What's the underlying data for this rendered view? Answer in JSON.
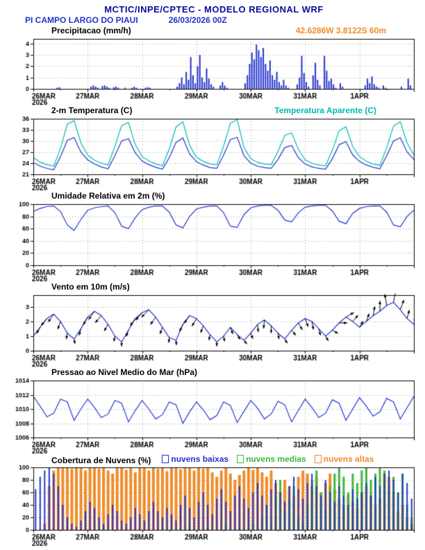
{
  "header": {
    "title": "MCTIC/INPE/CPTEC - MODELO REGIONAL WRF",
    "station": "PI CAMPO LARGO DO PIAUI",
    "run": "26/03/2026 00Z",
    "coords": "42.6286W 3.8122S 60m"
  },
  "colors": {
    "navy_title": "#0b0b99",
    "blue_series": "#2233cc",
    "cyan_series": "#00bbb0",
    "green_series": "#3cb83c",
    "orange_series": "#f08c28",
    "vector_black": "#000000"
  },
  "x_axis": {
    "ticks": [
      "26MAR",
      "27MAR",
      "28MAR",
      "29MAR",
      "30MAR",
      "31MAR",
      "1APR"
    ],
    "year": "2026",
    "total_hours": 168
  },
  "chart_data": [
    {
      "type": "bar",
      "title": "Precipitacao (mm/h)",
      "ylim": [
        0,
        4.4
      ],
      "yticks": [
        0,
        1,
        2,
        3,
        4
      ],
      "series": [
        {
          "name": "precipitacao",
          "kind": "bar",
          "color": "#2233cc",
          "step_hours": 1,
          "barw": 2,
          "values": [
            0,
            0,
            0,
            0,
            0,
            0,
            0,
            0,
            0,
            0,
            0.1,
            0.15,
            0,
            0,
            0,
            0,
            0,
            0,
            0,
            0,
            0,
            0,
            0,
            0,
            0,
            0.2,
            0.3,
            0.2,
            0.1,
            0,
            0.25,
            0.3,
            0.2,
            0.1,
            0,
            0.15,
            0.2,
            0.1,
            0,
            0,
            0.1,
            0,
            0,
            0.1,
            0.2,
            0.1,
            0,
            0,
            0,
            0.1,
            0.15,
            0.1,
            0,
            0,
            0,
            0,
            0,
            0,
            0,
            0,
            0,
            0,
            0,
            0.2,
            0.5,
            1,
            0.4,
            1.5,
            0.8,
            2.8,
            1.2,
            0.5,
            2,
            3,
            1,
            0.6,
            1.8,
            0.9,
            0.4,
            0.2,
            0,
            0,
            0.3,
            0.6,
            0.3,
            0.1,
            0,
            0,
            0,
            0,
            0,
            0,
            0,
            0.5,
            1.2,
            2.2,
            3.2,
            2.6,
            3.9,
            3.4,
            2.8,
            3.6,
            2.2,
            1.6,
            2.5,
            1.2,
            0.8,
            1.5,
            0.6,
            0.3,
            0.8,
            0.3,
            0.1,
            0,
            0,
            0,
            0.4,
            1,
            2.9,
            1.4,
            0.6,
            0.2,
            0,
            1.2,
            2.3,
            0.8,
            0.3,
            0,
            2.9,
            1.6,
            0.7,
            0.9,
            0.4,
            0.1,
            0,
            0.5,
            0.2,
            0,
            0,
            0,
            0,
            0,
            0,
            0,
            0,
            0,
            0.3,
            0.9,
            0.5,
            1.1,
            0.4,
            0.2,
            0.1,
            0,
            0.3,
            0.1,
            0,
            0,
            0,
            0,
            0,
            0,
            0.2,
            0,
            0,
            0.9,
            0.3,
            0
          ]
        }
      ]
    },
    {
      "type": "line",
      "title": "2-m Temperatura (C)",
      "right_label": "Temperatura Aparente (C)",
      "ylim": [
        21,
        36
      ],
      "yticks": [
        21,
        24,
        27,
        30,
        33,
        36
      ],
      "series": [
        {
          "name": "temperatura-2m",
          "kind": "line",
          "color": "#2233cc",
          "step_hours": 3,
          "values": [
            24.2,
            23.2,
            22.6,
            22.2,
            25.8,
            30.2,
            30.9,
            27,
            24.9,
            23.8,
            23,
            22.5,
            26,
            30,
            30.6,
            26.8,
            24.6,
            23.6,
            22.9,
            22.4,
            25.5,
            29.6,
            30.8,
            26.5,
            24.4,
            23.5,
            22.8,
            22.6,
            26.2,
            30.4,
            31,
            26,
            24,
            23.2,
            22.8,
            22.6,
            25,
            28.2,
            28.8,
            25.5,
            23.8,
            23,
            22.6,
            22.4,
            25.2,
            29,
            29.8,
            26.2,
            24.5,
            23.5,
            22.9,
            22.5,
            26,
            30,
            30.9,
            27,
            25
          ]
        },
        {
          "name": "temperatura-aparente",
          "kind": "line",
          "color": "#00bbb0",
          "step_hours": 3,
          "values": [
            25.5,
            24.3,
            23.6,
            23.2,
            28,
            34.5,
            35.5,
            29.5,
            26.2,
            24.8,
            24,
            23.5,
            28.5,
            34.2,
            35,
            29,
            25.8,
            24.6,
            23.8,
            23.3,
            27.8,
            33.8,
            35.2,
            28.8,
            25.6,
            24.5,
            23.8,
            23.6,
            28.6,
            34.8,
            35.8,
            28.2,
            25.2,
            24.2,
            23.8,
            23.6,
            27.2,
            31.5,
            32.2,
            27.8,
            24.9,
            24,
            23.5,
            23.3,
            27.5,
            32.8,
            33.8,
            28.5,
            25.8,
            24.5,
            23.8,
            23.4,
            28.2,
            34,
            35.2,
            29.5,
            26.2
          ]
        }
      ]
    },
    {
      "type": "line",
      "title": "Umidade Relativa em 2m (%)",
      "ylim": [
        0,
        100
      ],
      "yticks": [
        0,
        20,
        40,
        60,
        80,
        100
      ],
      "series": [
        {
          "name": "umidade-relativa",
          "kind": "line",
          "color": "#2233cc",
          "step_hours": 3,
          "values": [
            88,
            93,
            96,
            97,
            88,
            66,
            57,
            75,
            90,
            94,
            96,
            97,
            86,
            64,
            60,
            78,
            91,
            95,
            97,
            97,
            87,
            66,
            61,
            80,
            92,
            95,
            97,
            97,
            86,
            64,
            62,
            83,
            94,
            97,
            98,
            98,
            90,
            74,
            71,
            86,
            95,
            97,
            98,
            98,
            89,
            72,
            68,
            85,
            93,
            96,
            97,
            97,
            87,
            66,
            63,
            80,
            90
          ]
        }
      ]
    },
    {
      "type": "line",
      "title": "Vento em 10m (m/s)",
      "ylim": [
        0,
        3.8
      ],
      "yticks": [
        0,
        1,
        2,
        3
      ],
      "series": [
        {
          "name": "vento-velocidade",
          "kind": "line",
          "color": "#2233cc",
          "step_hours": 3,
          "values": [
            1,
            1.6,
            2.2,
            2.5,
            2,
            1.2,
            0.8,
            1.5,
            2.3,
            2.7,
            2.4,
            1.8,
            1,
            0.6,
            1.4,
            2.2,
            2.6,
            2.8,
            2.3,
            1.6,
            0.9,
            0.7,
            1.8,
            2.4,
            2.2,
            1.7,
            1.1,
            0.6,
            1,
            1.6,
            1.1,
            0.7,
            1.2,
            1.8,
            2.1,
            1.7,
            1.2,
            0.8,
            1.4,
            1.9,
            2.2,
            2,
            1.5,
            1,
            1.4,
            1.9,
            2.3,
            2,
            1.6,
            2,
            2.4,
            2.7,
            3.1,
            3.3,
            2.8,
            2.2,
            1.8
          ]
        },
        {
          "name": "vento-vetores",
          "kind": "vector",
          "color": "#000000",
          "step_hours": 3,
          "values": [],
          "directions": [
            200,
            210,
            220,
            215,
            200,
            190,
            170,
            195,
            210,
            215,
            220,
            210,
            190,
            180,
            200,
            215,
            220,
            225,
            215,
            200,
            185,
            175,
            205,
            215,
            210,
            200,
            190,
            180,
            170,
            160,
            150,
            140,
            160,
            175,
            185,
            180,
            170,
            150,
            140,
            150,
            160,
            170,
            165,
            150,
            120,
            90,
            60,
            40,
            30,
            20,
            10,
            0,
            350,
            10,
            20,
            15,
            10
          ]
        }
      ]
    },
    {
      "type": "line",
      "title": "Pressao ao Nivel Medio do Mar (hPa)",
      "ylim": [
        1006,
        1014
      ],
      "yticks": [
        1006,
        1008,
        1010,
        1012,
        1014
      ],
      "series": [
        {
          "name": "pressao-nmm",
          "kind": "line",
          "color": "#2233cc",
          "step_hours": 3,
          "values": [
            1011.8,
            1010.4,
            1008.9,
            1009.4,
            1011.4,
            1011,
            1008.4,
            1010,
            1011.4,
            1010.2,
            1008.8,
            1009.3,
            1011.2,
            1010.8,
            1008.2,
            1009.8,
            1011.2,
            1010,
            1008.6,
            1009.2,
            1011,
            1010.6,
            1008,
            1009.6,
            1011,
            1009.9,
            1008.5,
            1009.1,
            1011,
            1010.5,
            1008.1,
            1009.7,
            1011.2,
            1010.1,
            1008.6,
            1009.3,
            1011.1,
            1010.6,
            1008.2,
            1009.8,
            1011.4,
            1010.2,
            1008.8,
            1009.4,
            1011.3,
            1010.8,
            1008.4,
            1010,
            1011.6,
            1010.4,
            1009,
            1009.6,
            1011.5,
            1011,
            1008.6,
            1010.2,
            1011.8
          ]
        }
      ]
    },
    {
      "type": "bar",
      "title": "Cobertura de Nuvens (%)",
      "ylim": [
        0,
        100
      ],
      "yticks": [
        0,
        20,
        40,
        60,
        80,
        100
      ],
      "legend": [
        {
          "label": "nuvens baixas",
          "color": "#2233cc"
        },
        {
          "label": "nuvens medias",
          "color": "#3cb83c"
        },
        {
          "label": "nuvens altas",
          "color": "#f08c28"
        }
      ],
      "series": [
        {
          "name": "nuvens-altas",
          "kind": "bar",
          "color": "#f08c28",
          "step_hours": 2,
          "barw": 4,
          "values": [
            0,
            0,
            10,
            70,
            95,
            100,
            100,
            100,
            98,
            100,
            100,
            95,
            100,
            100,
            98,
            100,
            95,
            90,
            100,
            100,
            96,
            100,
            92,
            100,
            100,
            95,
            100,
            98,
            100,
            94,
            100,
            100,
            97,
            100,
            100,
            95,
            100,
            98,
            100,
            92,
            85,
            95,
            100,
            90,
            80,
            88,
            95,
            100,
            96,
            100,
            92,
            85,
            95,
            75,
            60,
            80,
            70,
            55,
            85,
            95,
            90,
            70,
            85,
            60,
            75,
            90,
            65,
            50,
            40,
            55,
            45,
            35,
            60,
            70,
            55,
            40,
            50,
            90,
            85,
            60,
            30,
            40,
            20,
            10
          ]
        },
        {
          "name": "nuvens-medias",
          "kind": "bar",
          "color": "#3cb83c",
          "step_hours": 2,
          "barw": 3,
          "values": [
            0,
            0,
            0,
            0,
            0,
            0,
            0,
            0,
            0,
            0,
            0,
            0,
            0,
            0,
            0,
            5,
            0,
            0,
            0,
            0,
            0,
            0,
            0,
            0,
            0,
            0,
            0,
            0,
            5,
            0,
            0,
            0,
            0,
            0,
            10,
            0,
            0,
            0,
            5,
            0,
            0,
            0,
            10,
            0,
            0,
            5,
            0,
            0,
            10,
            0,
            20,
            40,
            10,
            60,
            80,
            30,
            50,
            70,
            20,
            10,
            40,
            80,
            95,
            60,
            30,
            70,
            90,
            100,
            85,
            60,
            90,
            75,
            95,
            100,
            80,
            90,
            100,
            95,
            70,
            85,
            60,
            90,
            40,
            20
          ]
        },
        {
          "name": "nuvens-baixas",
          "kind": "bar",
          "color": "#2233cc",
          "step_hours": 2,
          "barw": 2,
          "values": [
            65,
            85,
            95,
            100,
            90,
            70,
            40,
            20,
            10,
            5,
            15,
            30,
            45,
            35,
            20,
            10,
            25,
            40,
            30,
            15,
            10,
            20,
            35,
            25,
            15,
            30,
            45,
            30,
            20,
            35,
            25,
            15,
            40,
            55,
            35,
            20,
            45,
            60,
            40,
            25,
            50,
            65,
            45,
            30,
            55,
            70,
            50,
            35,
            60,
            75,
            55,
            40,
            65,
            80,
            60,
            45,
            70,
            85,
            65,
            50,
            75,
            90,
            70,
            55,
            80,
            60,
            45,
            70,
            55,
            40,
            65,
            50,
            60,
            75,
            55,
            85,
            70,
            90,
            95,
            80,
            60,
            90,
            75,
            50
          ]
        }
      ]
    }
  ]
}
